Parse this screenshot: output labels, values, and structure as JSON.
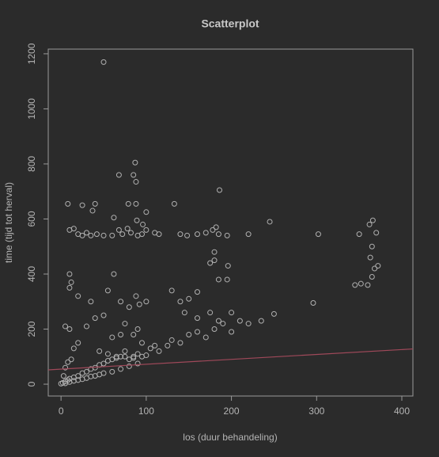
{
  "chart_data": {
    "type": "scatter",
    "title": "Scatterplot",
    "x_label": "los (duur behandeling)",
    "y_label": "time (tijd tot herval)",
    "color": "#b0b0b0",
    "x": [
      50,
      68,
      85,
      87,
      88,
      186,
      8,
      25,
      37,
      40,
      88,
      79,
      100,
      133,
      62,
      89,
      96,
      10,
      15,
      20,
      25,
      30,
      35,
      42,
      50,
      60,
      68,
      72,
      78,
      82,
      90,
      95,
      100,
      110,
      115,
      140,
      148,
      160,
      170,
      178,
      182,
      185,
      195,
      220,
      245,
      302,
      350,
      362,
      366,
      370,
      365,
      363,
      368,
      372,
      345,
      352,
      360,
      365,
      180,
      180,
      196,
      175,
      185,
      195,
      160,
      150,
      10,
      12,
      10,
      20,
      35,
      55,
      62,
      70,
      80,
      88,
      92,
      100,
      130,
      140,
      145,
      160,
      175,
      190,
      200,
      210,
      220,
      235,
      250,
      296,
      180,
      170,
      150,
      140,
      125,
      115,
      105,
      95,
      90,
      85,
      75,
      70,
      60,
      50,
      40,
      30,
      20,
      15,
      10,
      5,
      45,
      55,
      65,
      75,
      80,
      85,
      90,
      95,
      100,
      110,
      130,
      160,
      185,
      200,
      2,
      5,
      8,
      10,
      15,
      20,
      25,
      30,
      35,
      40,
      45,
      50,
      55,
      60,
      65,
      70,
      75,
      85,
      5,
      10,
      15,
      20,
      25,
      30,
      35,
      40,
      45,
      50,
      60,
      70,
      80,
      90,
      3,
      5,
      8,
      12,
      0
    ],
    "values": [
      1170,
      760,
      760,
      805,
      735,
      705,
      655,
      650,
      630,
      655,
      655,
      655,
      625,
      655,
      605,
      595,
      580,
      560,
      565,
      545,
      540,
      550,
      540,
      545,
      540,
      540,
      560,
      545,
      565,
      550,
      540,
      545,
      560,
      550,
      545,
      545,
      540,
      545,
      550,
      560,
      570,
      545,
      540,
      545,
      590,
      545,
      545,
      580,
      595,
      550,
      500,
      460,
      420,
      430,
      360,
      365,
      360,
      390,
      480,
      450,
      430,
      440,
      380,
      380,
      335,
      310,
      400,
      370,
      350,
      320,
      300,
      340,
      400,
      300,
      280,
      320,
      290,
      300,
      340,
      300,
      260,
      240,
      260,
      220,
      260,
      230,
      220,
      230,
      255,
      295,
      200,
      170,
      180,
      150,
      140,
      120,
      130,
      150,
      200,
      180,
      220,
      180,
      170,
      250,
      240,
      210,
      150,
      130,
      200,
      210,
      120,
      110,
      100,
      120,
      90,
      95,
      110,
      100,
      105,
      140,
      160,
      190,
      230,
      190,
      5,
      10,
      15,
      20,
      25,
      30,
      40,
      45,
      55,
      60,
      70,
      75,
      85,
      90,
      95,
      100,
      100,
      100,
      3,
      8,
      12,
      15,
      18,
      22,
      28,
      30,
      35,
      40,
      45,
      55,
      65,
      75,
      30,
      60,
      80,
      90,
      2
    ],
    "fit_line": {
      "x": [
        -15,
        413
      ],
      "values": [
        52,
        128
      ],
      "color": "#a0495a"
    },
    "xlim": [
      -15,
      413
    ],
    "ylim": [
      -43,
      1217
    ],
    "xticks": [
      0,
      100,
      200,
      300,
      400
    ],
    "yticks": [
      0,
      200,
      400,
      600,
      800,
      1000,
      1200
    ]
  }
}
